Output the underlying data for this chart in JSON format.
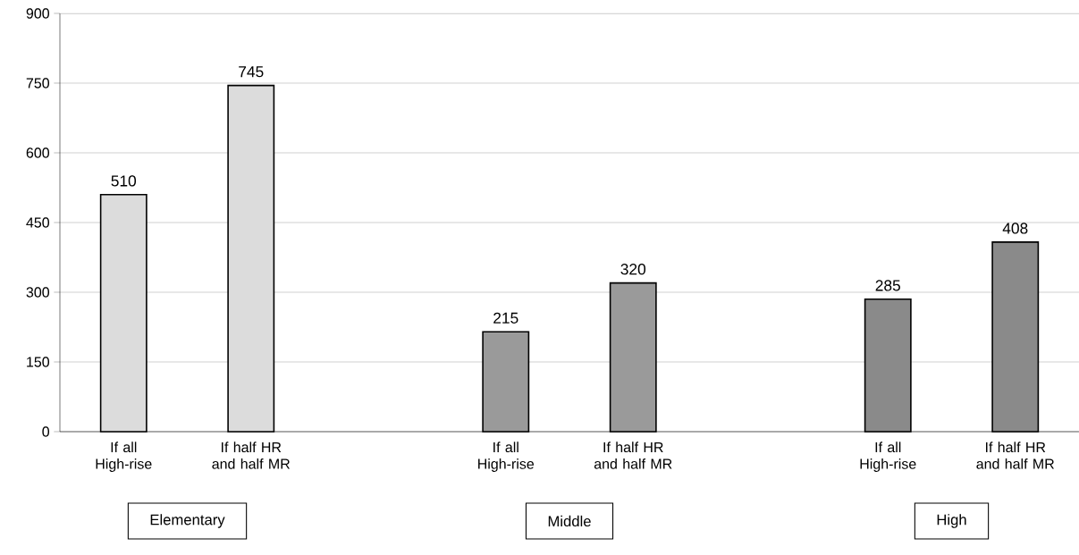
{
  "chart_data": {
    "type": "bar",
    "categories": [
      "If all High-rise",
      "If half HR and half MR",
      null,
      "If all High-rise",
      "If half HR and half MR",
      null,
      "If all High-rise",
      "If half HR and half MR"
    ],
    "values": [
      510,
      745,
      null,
      215,
      320,
      null,
      285,
      408
    ],
    "colors": [
      "#dcdcdc",
      "#dcdcdc",
      null,
      "#9a9a9a",
      "#9a9a9a",
      null,
      "#8a8a8a",
      "#8a8a8a"
    ],
    "ylim": [
      0,
      900
    ],
    "yticks": [
      0,
      150,
      300,
      450,
      600,
      750,
      900
    ],
    "grid": "y",
    "data_labels": true,
    "annotations": [
      "Elementary",
      "Middle",
      "High"
    ]
  }
}
